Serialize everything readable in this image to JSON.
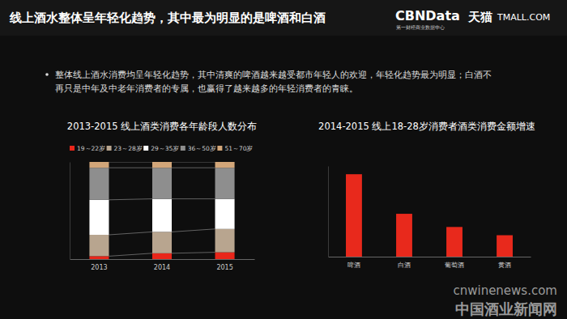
{
  "header": {
    "title": "线上酒水整体呈年轻化趋势，其中最为明显的是啤酒和白酒",
    "bullet": [
      "整体线上酒水消费均呈年轻化趋势，其中清爽的啤酒越来越受都市年轻人的欢迎，年轻化趋势最为明显；白酒不",
      "再只是中年及中老年消费者的专属，也赢得了越来越多的年轻消费者的青睐。"
    ],
    "logo": "CBNData",
    "logo_sub": "第一财经商业数据中心",
    "partner": "天猫",
    "partner_en": "TMALL.COM"
  },
  "watermark": {
    "url": "cnwinenews.com",
    "name": "中国酒业新闻网"
  },
  "chart_data": [
    {
      "type": "bar",
      "stacked": true,
      "title": "2013-2015 线上酒类消费各年龄段人数分布",
      "categories": [
        "2013",
        "2014",
        "2015"
      ],
      "series": [
        {
          "name": "19～22岁",
          "color": "#e8261a",
          "values": [
            3,
            6,
            7
          ]
        },
        {
          "name": "23～28岁",
          "color": "#b8a58f",
          "values": [
            22,
            22,
            24
          ]
        },
        {
          "name": "29～35岁",
          "color": "#ffffff",
          "values": [
            36,
            34,
            31
          ]
        },
        {
          "name": "36～50岁",
          "color": "#8e8e8e",
          "values": [
            33,
            32,
            32
          ]
        },
        {
          "name": "51～70岁",
          "color": "#d2a679",
          "values": [
            6,
            6,
            6
          ]
        }
      ],
      "ylim": [
        0,
        100
      ],
      "tick_labels": "x",
      "legend": "top"
    },
    {
      "type": "bar",
      "title": "2014-2015 线上18-28岁消费者酒类消费金额增速",
      "categories": [
        "啤酒",
        "白酒",
        "葡萄酒",
        "黄酒"
      ],
      "values": [
        100,
        52,
        36,
        26
      ],
      "color": "#e8291c",
      "ylim": [
        0,
        110
      ],
      "tick_labels": "x"
    }
  ]
}
